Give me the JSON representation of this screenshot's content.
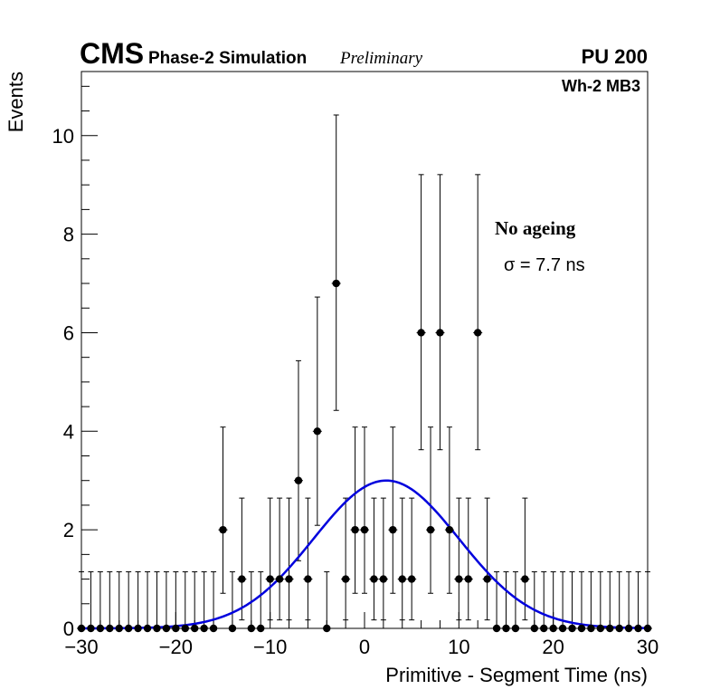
{
  "header": {
    "experiment": "CMS",
    "subtitle": "Phase-2 Simulation",
    "status": "Preliminary",
    "pileup": "PU 200",
    "chamber": "Wh-2 MB3"
  },
  "annotations": {
    "condition": "No ageing",
    "sigma_text": "σ = 7.7 ns"
  },
  "chart_data": {
    "type": "scatter",
    "xlabel": "Primitive - Segment Time (ns)",
    "ylabel": "Events",
    "xlim": [
      -30,
      30
    ],
    "ylim": [
      0,
      11.3
    ],
    "x_ticks": [
      -30,
      -20,
      -10,
      0,
      10,
      20,
      30
    ],
    "x_tick_labels": [
      "−30",
      "−20",
      "−10",
      "0",
      "10",
      "20",
      "30"
    ],
    "y_ticks": [
      0,
      2,
      4,
      6,
      8,
      10
    ],
    "y_tick_labels": [
      "0",
      "2",
      "4",
      "6",
      "8",
      "10"
    ],
    "grid": false,
    "series": [
      {
        "kind": "histogram-points",
        "color": "#000000",
        "x": [
          -30,
          -29,
          -28,
          -27,
          -26,
          -25,
          -24,
          -23,
          -22,
          -21,
          -20,
          -19,
          -18,
          -17,
          -16,
          -15,
          -14,
          -13,
          -12,
          -11,
          -10,
          -9,
          -8,
          -7,
          -6,
          -5,
          -4,
          -3,
          -2,
          -1,
          0,
          1,
          2,
          3,
          4,
          5,
          6,
          7,
          8,
          9,
          10,
          11,
          12,
          13,
          14,
          15,
          16,
          17,
          18,
          19,
          20,
          21,
          22,
          23,
          24,
          25,
          26,
          27,
          28,
          29,
          30
        ],
        "y": [
          0,
          0,
          0,
          0,
          0,
          0,
          0,
          0,
          0,
          0,
          0,
          0,
          0,
          0,
          0,
          2,
          0,
          1,
          0,
          0,
          1,
          1,
          1,
          3,
          1,
          4,
          0,
          7,
          1,
          2,
          2,
          1,
          1,
          2,
          1,
          1,
          6,
          2,
          6,
          2,
          1,
          1,
          6,
          1,
          0,
          0,
          0,
          1,
          0,
          0,
          0,
          0,
          0,
          0,
          0,
          0,
          0,
          0,
          0,
          0,
          0
        ]
      },
      {
        "kind": "gaussian-fit",
        "color": "#0000dd",
        "amplitude": 3.0,
        "mean": 2.3,
        "sigma": 7.7
      }
    ]
  }
}
